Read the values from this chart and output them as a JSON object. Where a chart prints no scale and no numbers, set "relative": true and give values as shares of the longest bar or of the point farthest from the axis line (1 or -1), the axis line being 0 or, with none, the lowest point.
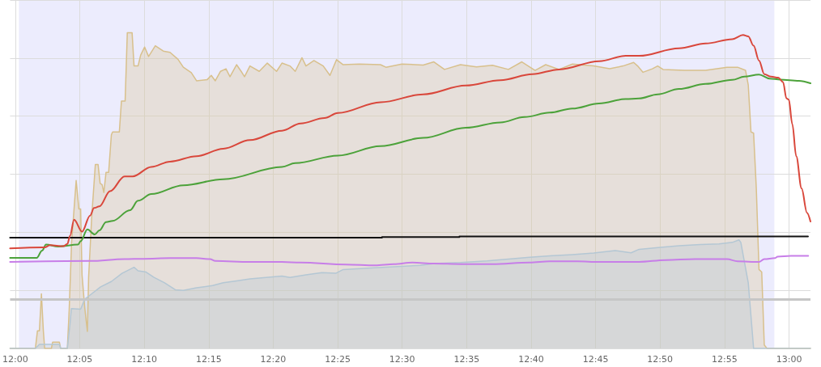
{
  "chart_data": {
    "type": "line",
    "relative": true,
    "xlim": [
      11.9933,
      13.0277
    ],
    "xticks": [
      {
        "value": 12,
        "label": "12:00"
      },
      {
        "value": 12.0833,
        "label": "12:05"
      },
      {
        "value": 12.1667,
        "label": "12:10"
      },
      {
        "value": 12.25,
        "label": "12:15"
      },
      {
        "value": 12.3333,
        "label": "12:20"
      },
      {
        "value": 12.4167,
        "label": "12:25"
      },
      {
        "value": 12.5,
        "label": "12:30"
      },
      {
        "value": 12.5833,
        "label": "12:35"
      },
      {
        "value": 12.6667,
        "label": "12:40"
      },
      {
        "value": 12.75,
        "label": "12:45"
      },
      {
        "value": 12.8333,
        "label": "12:50"
      },
      {
        "value": 12.9167,
        "label": "12:55"
      },
      {
        "value": 13,
        "label": "13:00"
      }
    ],
    "tick_labels": "x",
    "grid": true,
    "marker": "none",
    "line_style": "solid",
    "bands": [
      {
        "axis": "x",
        "from": 12.0047,
        "to": 12.981,
        "color": "#ececfd"
      }
    ],
    "ref_lines": [
      {
        "axis": "y",
        "value": 0.156,
        "color": "#c6c6c6"
      }
    ],
    "series": [
      {
        "type": "area",
        "color": "#d8c08c",
        "x": [
          11.9933,
          12.026,
          12.0287,
          12.0312,
          12.0338,
          12.0363,
          12.038,
          12.0467,
          12.0483,
          12.057,
          12.0587,
          12.0673,
          12.0697,
          12.0728,
          12.0787,
          12.0822,
          12.0845,
          12.0863,
          12.0897,
          12.0932,
          12.0948,
          12.0987,
          12.1035,
          12.107,
          12.1097,
          12.1122,
          12.1145,
          12.1173,
          12.1207,
          12.1242,
          12.1258,
          12.1345,
          12.1372,
          12.142,
          12.1448,
          12.151,
          12.1535,
          12.1587,
          12.162,
          12.1672,
          12.1723,
          12.181,
          12.1913,
          12.2,
          12.2103,
          12.2172,
          12.2275,
          12.2343,
          12.2482,
          12.2533,
          12.2585,
          12.2653,
          12.2723,
          12.2775,
          12.286,
          12.293,
          12.2963,
          12.3033,
          12.3153,
          12.3257,
          12.3377,
          12.3447,
          12.355,
          12.3618,
          12.3705,
          12.3757,
          12.386,
          12.398,
          12.4067,
          12.4152,
          12.4238,
          12.4445,
          12.472,
          12.479,
          12.4997,
          12.5272,
          12.541,
          12.5547,
          12.5753,
          12.596,
          12.6167,
          12.6373,
          12.6547,
          12.6718,
          12.6855,
          12.7028,
          12.72,
          12.7475,
          12.7682,
          12.7855,
          12.7992,
          12.8043,
          12.8113,
          12.8233,
          12.8302,
          12.8372,
          12.8647,
          12.8922,
          12.9198,
          12.9335,
          12.9438,
          12.9473,
          12.9508,
          12.9542,
          12.9577,
          12.9612,
          12.9647,
          12.968,
          12.9715,
          13.0277
        ],
        "values": [
          0,
          0,
          0.056,
          0.056,
          0.173,
          0.056,
          0,
          0,
          0.02,
          0.02,
          0,
          0,
          0.123,
          0.336,
          0.532,
          0.442,
          0.442,
          0.233,
          0.131,
          0.054,
          0.225,
          0.413,
          0.583,
          0.583,
          0.523,
          0.519,
          0.494,
          0.558,
          0.558,
          0.677,
          0.686,
          0.686,
          0.784,
          0.784,
          1,
          1,
          0.895,
          0.895,
          0.929,
          0.955,
          0.925,
          0.959,
          0.942,
          0.938,
          0.916,
          0.891,
          0.874,
          0.848,
          0.852,
          0.865,
          0.848,
          0.878,
          0.886,
          0.861,
          0.899,
          0.874,
          0.861,
          0.895,
          0.878,
          0.904,
          0.878,
          0.904,
          0.895,
          0.878,
          0.921,
          0.895,
          0.912,
          0.895,
          0.865,
          0.915,
          0.899,
          0.901,
          0.899,
          0.891,
          0.901,
          0.898,
          0.908,
          0.884,
          0.899,
          0.892,
          0.897,
          0.884,
          0.908,
          0.881,
          0.899,
          0.884,
          0.901,
          0.895,
          0.886,
          0.895,
          0.906,
          0.895,
          0.875,
          0.886,
          0.895,
          0.884,
          0.881,
          0.881,
          0.891,
          0.891,
          0.881,
          0.835,
          0.686,
          0.682,
          0.507,
          0.25,
          0.242,
          0.011,
          0,
          0
        ]
      },
      {
        "type": "area",
        "color": "#b4c7d4",
        "x": [
          11.9933,
          12.026,
          12.0312,
          12.057,
          12.0587,
          12.0673,
          12.0708,
          12.0725,
          12.0845,
          12.0897,
          12.0967,
          12.1103,
          12.1242,
          12.138,
          12.1535,
          12.1587,
          12.169,
          12.1793,
          12.193,
          12.2068,
          12.2172,
          12.2343,
          12.255,
          12.2688,
          12.286,
          12.3033,
          12.324,
          12.3447,
          12.355,
          12.3757,
          12.3963,
          12.4142,
          12.4238,
          12.4548,
          12.4893,
          12.5237,
          12.541,
          12.5753,
          12.6098,
          12.6373,
          12.6648,
          12.6907,
          12.72,
          12.7475,
          12.7752,
          12.7958,
          12.8062,
          12.8337,
          12.8578,
          12.8853,
          12.9095,
          12.9267,
          12.9353,
          12.9377,
          12.9473,
          12.9542,
          13.0277
        ],
        "values": [
          0,
          0,
          0.013,
          0.013,
          0,
          0,
          0.079,
          0.126,
          0.124,
          0.156,
          0.169,
          0.195,
          0.212,
          0.238,
          0.257,
          0.246,
          0.242,
          0.225,
          0.208,
          0.186,
          0.184,
          0.192,
          0.199,
          0.208,
          0.214,
          0.22,
          0.225,
          0.229,
          0.225,
          0.233,
          0.24,
          0.238,
          0.25,
          0.254,
          0.259,
          0.263,
          0.269,
          0.272,
          0.277,
          0.283,
          0.289,
          0.293,
          0.297,
          0.302,
          0.31,
          0.303,
          0.314,
          0.32,
          0.325,
          0.329,
          0.331,
          0.336,
          0.344,
          0.336,
          0.208,
          0,
          0
        ]
      },
      {
        "type": "line",
        "color": "#c77ee8",
        "x": [
          11.9933,
          12.0967,
          12.1413,
          12.1655,
          12.2,
          12.2343,
          12.2517,
          12.2585,
          12.3033,
          12.3447,
          12.3687,
          12.4273,
          12.4652,
          12.4893,
          12.5133,
          12.541,
          12.5753,
          12.6167,
          12.6648,
          12.6907,
          12.7268,
          12.7545,
          12.8062,
          12.8405,
          12.8785,
          12.9198,
          12.9335,
          12.9612,
          12.968,
          12.9818,
          12.9852,
          13.0025,
          13.0248
        ],
        "values": [
          0.274,
          0.277,
          0.283,
          0.284,
          0.286,
          0.286,
          0.283,
          0.277,
          0.274,
          0.274,
          0.272,
          0.266,
          0.263,
          0.267,
          0.272,
          0.269,
          0.267,
          0.267,
          0.272,
          0.276,
          0.276,
          0.274,
          0.274,
          0.28,
          0.283,
          0.283,
          0.276,
          0.274,
          0.283,
          0.286,
          0.291,
          0.293,
          0.293
        ]
      },
      {
        "type": "step",
        "color": "#111111",
        "x": [
          11.9933,
          12.474,
          12.574,
          13.0245
        ],
        "values": [
          0.351,
          0.353,
          0.355,
          0.355
        ]
      },
      {
        "type": "line",
        "color": "#4ca23a",
        "x": [
          11.9933,
          12.0277,
          12.0347,
          12.0398,
          12.0553,
          12.0812,
          12.0845,
          12.0932,
          12.1028,
          12.1087,
          12.1173,
          12.1258,
          12.1483,
          12.1587,
          12.1758,
          12.2172,
          12.2688,
          12.3447,
          12.3618,
          12.417,
          12.472,
          12.5272,
          12.5822,
          12.627,
          12.658,
          12.6907,
          12.72,
          12.7545,
          12.7888,
          12.8062,
          12.8302,
          12.8578,
          12.8922,
          12.9267,
          12.9422,
          12.9612,
          12.9748,
          12.9887,
          13.0128,
          13.0277
        ],
        "values": [
          0.287,
          0.287,
          0.31,
          0.329,
          0.323,
          0.329,
          0.34,
          0.377,
          0.361,
          0.374,
          0.4,
          0.404,
          0.438,
          0.468,
          0.489,
          0.517,
          0.536,
          0.575,
          0.587,
          0.611,
          0.641,
          0.667,
          0.699,
          0.716,
          0.733,
          0.747,
          0.76,
          0.776,
          0.79,
          0.792,
          0.805,
          0.822,
          0.838,
          0.851,
          0.861,
          0.868,
          0.855,
          0.852,
          0.848,
          0.84
        ]
      },
      {
        "type": "line",
        "color": "#d9473b",
        "x": [
          11.9933,
          12.038,
          12.045,
          12.0622,
          12.0673,
          12.0708,
          12.076,
          12.0863,
          12.0967,
          12.1018,
          12.1087,
          12.1225,
          12.1413,
          12.1517,
          12.1758,
          12.2,
          12.2343,
          12.2688,
          12.3033,
          12.3447,
          12.3687,
          12.3997,
          12.417,
          12.472,
          12.5272,
          12.5822,
          12.627,
          12.6683,
          12.7028,
          12.7545,
          12.7888,
          12.8062,
          12.8578,
          12.8922,
          12.9267,
          12.9405,
          12.9473,
          12.9542,
          12.9612,
          12.968,
          12.9767,
          12.986,
          12.9922,
          12.9967,
          12.9997,
          13.0042,
          13.0093,
          13.0162,
          13.0232,
          13.0277
        ],
        "values": [
          0.317,
          0.32,
          0.327,
          0.324,
          0.331,
          0.357,
          0.408,
          0.37,
          0.421,
          0.445,
          0.45,
          0.498,
          0.545,
          0.545,
          0.575,
          0.592,
          0.609,
          0.633,
          0.66,
          0.69,
          0.713,
          0.73,
          0.746,
          0.78,
          0.805,
          0.833,
          0.85,
          0.869,
          0.884,
          0.91,
          0.927,
          0.927,
          0.951,
          0.966,
          0.98,
          0.993,
          0.989,
          0.959,
          0.912,
          0.869,
          0.861,
          0.858,
          0.844,
          0.792,
          0.788,
          0.711,
          0.609,
          0.507,
          0.43,
          0.402
        ]
      }
    ]
  }
}
